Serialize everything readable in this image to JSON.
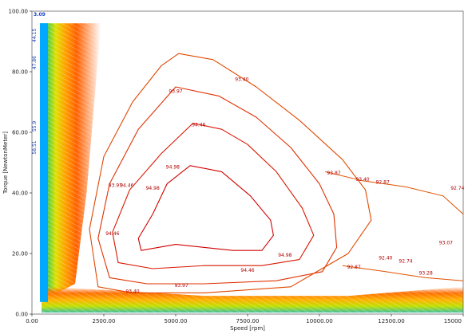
{
  "chart_data": {
    "type": "contour",
    "title": "",
    "xlabel": "Speed [rpm]",
    "ylabel": "Torque [NewtonMeter]",
    "xlim": [
      0,
      15000
    ],
    "ylim": [
      0,
      100
    ],
    "x_ticks": [
      "0.00",
      "2500.00",
      "5000.00",
      "7500.00",
      "10000.00",
      "12500.00",
      "15000"
    ],
    "y_ticks": [
      "0.00",
      "20.00",
      "40.00",
      "60.00",
      "80.00",
      "100.00"
    ],
    "grid": false,
    "colormap": [
      "#00a0ff",
      "#00e0c0",
      "#40d040",
      "#c0e000",
      "#ffe000",
      "#ffa000",
      "#ff6000",
      "#e02000"
    ],
    "corner_label": "3.09",
    "left_edge_labels": [
      "44.15",
      "47.86",
      "55.9",
      "58.51"
    ],
    "contours": [
      {
        "level": "94.98",
        "x": [
          5500,
          6600,
          7600,
          8300,
          8400,
          8000,
          7000,
          6000,
          5000,
          3800,
          3700,
          4200,
          4700,
          5500
        ],
        "y": [
          49,
          47,
          39,
          31,
          26,
          21,
          21,
          22,
          23,
          21,
          25,
          33,
          43,
          49
        ],
        "labels": [
          {
            "text": "94.98",
            "x": 4900,
            "y": 48
          },
          {
            "text": "94.98",
            "x": 4200,
            "y": 41
          },
          {
            "text": "94.98",
            "x": 8800,
            "y": 19
          }
        ]
      },
      {
        "level": "94.46",
        "x": [
          5600,
          6600,
          7500,
          8500,
          9400,
          9800,
          9300,
          8000,
          6000,
          4200,
          3000,
          2800,
          3400,
          4500,
          5600
        ],
        "y": [
          63,
          61,
          56,
          47,
          35,
          26,
          18,
          16,
          16,
          15,
          17,
          27,
          41,
          53,
          63
        ],
        "labels": [
          {
            "text": "94.46",
            "x": 5800,
            "y": 62
          },
          {
            "text": "94.46",
            "x": 3300,
            "y": 42
          },
          {
            "text": "94.46",
            "x": 2800,
            "y": 26
          },
          {
            "text": "94.46",
            "x": 7500,
            "y": 14
          }
        ]
      },
      {
        "level": "93.97",
        "x": [
          5000,
          6500,
          7800,
          9000,
          10000,
          10500,
          10600,
          10100,
          8500,
          6000,
          4000,
          2700,
          2300,
          2700,
          3700,
          5000
        ],
        "y": [
          75,
          72,
          65,
          55,
          43,
          33,
          22,
          14,
          11,
          10,
          10,
          12,
          25,
          43,
          61,
          75
        ],
        "labels": [
          {
            "text": "93.97",
            "x": 5000,
            "y": 73
          },
          {
            "text": "93.97",
            "x": 2900,
            "y": 42
          },
          {
            "text": "93.97",
            "x": 5200,
            "y": 9
          }
        ]
      },
      {
        "level": "93.40",
        "x": [
          5100,
          6300,
          7800,
          9300,
          10800,
          11600,
          11800,
          11000,
          9000,
          6000,
          3500,
          2300,
          2000,
          2500,
          3500,
          4500,
          5100
        ],
        "y": [
          86,
          84,
          75,
          64,
          51,
          41,
          31,
          20,
          9,
          7,
          7,
          9,
          28,
          52,
          70,
          82,
          86
        ],
        "labels": [
          {
            "text": "93.40",
            "x": 7300,
            "y": 77
          },
          {
            "text": "93.40",
            "x": 11500,
            "y": 44
          },
          {
            "text": "93.40",
            "x": 3500,
            "y": 7
          }
        ]
      }
    ],
    "extra_labels": [
      {
        "text": "93.87",
        "x": 10500,
        "y": 46
      },
      {
        "text": "92.87",
        "x": 12200,
        "y": 43
      },
      {
        "text": "92.74",
        "x": 14800,
        "y": 41
      },
      {
        "text": "93.07",
        "x": 14400,
        "y": 23
      },
      {
        "text": "92.40",
        "x": 12300,
        "y": 18
      },
      {
        "text": "92.74",
        "x": 13000,
        "y": 17
      },
      {
        "text": "93.28",
        "x": 13700,
        "y": 13
      },
      {
        "text": "92.87",
        "x": 11200,
        "y": 15
      }
    ]
  }
}
